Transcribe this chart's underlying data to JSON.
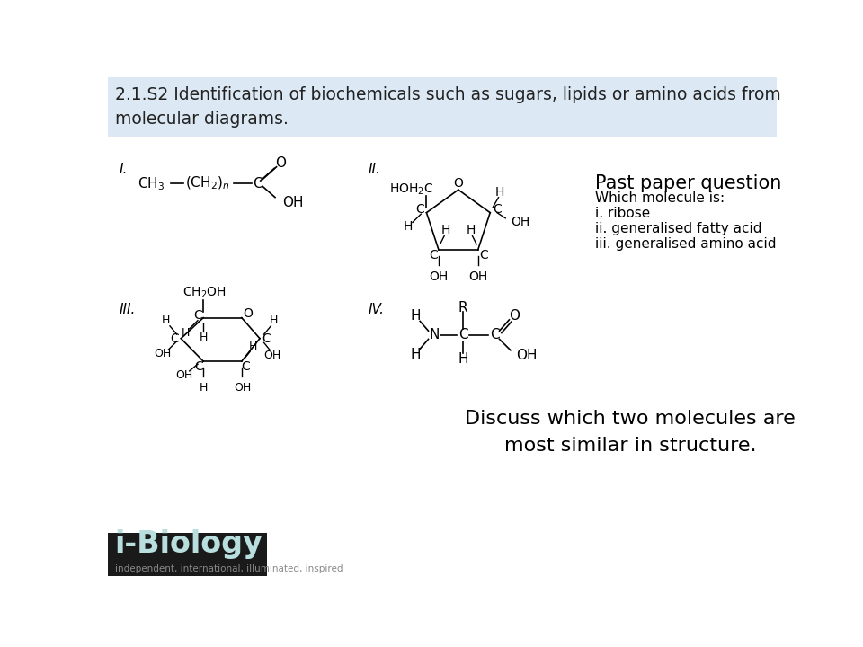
{
  "title_text": "2.1.S2 Identification of biochemicals such as sugars, lipids or amino acids from\nmolecular diagrams.",
  "title_bg": "#dce9f5",
  "bg_color": "#ffffff",
  "logo_bg": "#1a1a1a",
  "logo_text": "i-Biology",
  "logo_sub": "independent, international, illuminated, inspired",
  "past_paper_title": "Past paper question",
  "past_paper_lines": [
    "Which molecule is:",
    "i. ribose",
    "ii. generalised fatty acid",
    "iii. generalised amino acid"
  ],
  "discuss_text": "Discuss which two molecules are\nmost similar in structure.",
  "roman_I": "I.",
  "roman_II": "II.",
  "roman_III": "III.",
  "roman_IV": "IV."
}
